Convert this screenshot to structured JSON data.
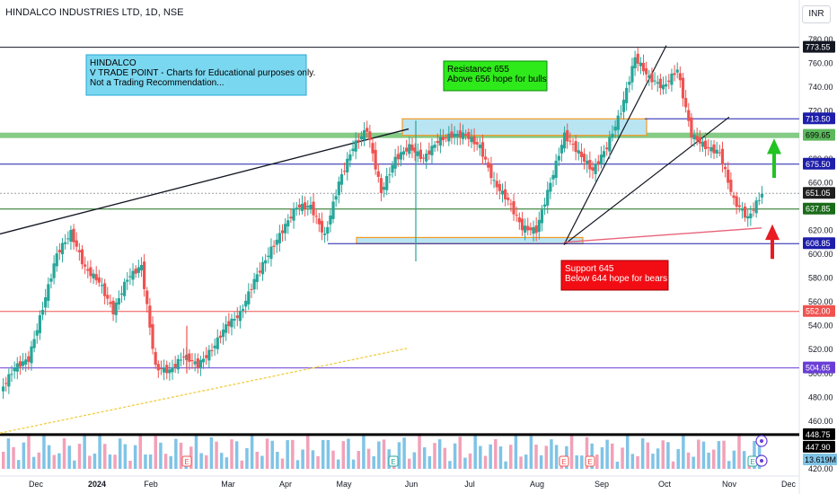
{
  "header": {
    "symbol_line": "HINDALCO INDUSTRIES LTD, 1D, NSE",
    "currency_button": "INR"
  },
  "colors": {
    "up": "#26a69a",
    "down": "#ef5350",
    "axis_text": "#131722",
    "note_cyan": "#7ad7f0",
    "note_green": "#2eea1a",
    "note_red": "#f20d14",
    "box_fill": "#b9e4f2",
    "box_border": "#f59a23",
    "green_band": "#5cb85c",
    "navy": "#1e1eab",
    "purple": "#6a3ed6",
    "pink_line": "#e8637b",
    "orange_trend": "#f2d04a"
  },
  "chart_data": {
    "type": "candlestick",
    "instrument": "HINDALCO INDUSTRIES LTD",
    "interval": "1D",
    "exchange": "NSE",
    "currency": "INR",
    "ylim": [
      420,
      780
    ],
    "y_ticks": [
      420,
      440,
      460,
      480,
      500,
      520,
      540,
      560,
      580,
      600,
      620,
      640,
      660,
      680,
      700,
      720,
      740,
      760,
      780
    ],
    "x_ticks": [
      "Dec",
      "2024",
      "Feb",
      "Mar",
      "Apr",
      "May",
      "Jun",
      "Jul",
      "Aug",
      "Sep",
      "Oct",
      "Nov",
      "Dec"
    ],
    "price_points": [
      {
        "label": "Nov 30",
        "close": 485
      },
      {
        "label": "Dec 08",
        "close": 505
      },
      {
        "label": "Dec 15",
        "close": 512
      },
      {
        "label": "Dec 22",
        "close": 555
      },
      {
        "label": "Dec 29",
        "close": 600
      },
      {
        "label": "Jan 05",
        "close": 618
      },
      {
        "label": "Jan 12",
        "close": 588
      },
      {
        "label": "Jan 19",
        "close": 577
      },
      {
        "label": "Jan 26",
        "close": 552
      },
      {
        "label": "Feb 02",
        "close": 580
      },
      {
        "label": "Feb 09",
        "close": 590
      },
      {
        "label": "Feb 16",
        "close": 505
      },
      {
        "label": "Feb 23",
        "close": 502
      },
      {
        "label": "Mar 01",
        "close": 515
      },
      {
        "label": "Mar 08",
        "close": 507
      },
      {
        "label": "Mar 15",
        "close": 520
      },
      {
        "label": "Mar 22",
        "close": 540
      },
      {
        "label": "Mar 29",
        "close": 550
      },
      {
        "label": "Apr 05",
        "close": 578
      },
      {
        "label": "Apr 12",
        "close": 600
      },
      {
        "label": "Apr 19",
        "close": 620
      },
      {
        "label": "Apr 26",
        "close": 640
      },
      {
        "label": "May 03",
        "close": 640
      },
      {
        "label": "May 10",
        "close": 615
      },
      {
        "label": "May 17",
        "close": 660
      },
      {
        "label": "May 24",
        "close": 690
      },
      {
        "label": "May 31",
        "close": 705
      },
      {
        "label": "Jun 04",
        "close": 652
      },
      {
        "label": "Jun 07",
        "close": 680
      },
      {
        "label": "Jun 14",
        "close": 690
      },
      {
        "label": "Jun 21",
        "close": 680
      },
      {
        "label": "Jun 28",
        "close": 695
      },
      {
        "label": "Jul 05",
        "close": 700
      },
      {
        "label": "Jul 12",
        "close": 700
      },
      {
        "label": "Jul 19",
        "close": 690
      },
      {
        "label": "Jul 26",
        "close": 660
      },
      {
        "label": "Aug 02",
        "close": 645
      },
      {
        "label": "Aug 09",
        "close": 622
      },
      {
        "label": "Aug 16",
        "close": 620
      },
      {
        "label": "Aug 23",
        "close": 660
      },
      {
        "label": "Aug 30",
        "close": 700
      },
      {
        "label": "Sep 06",
        "close": 685
      },
      {
        "label": "Sep 13",
        "close": 670
      },
      {
        "label": "Sep 20",
        "close": 690
      },
      {
        "label": "Sep 27",
        "close": 720
      },
      {
        "label": "Oct 01",
        "close": 765
      },
      {
        "label": "Oct 04",
        "close": 748
      },
      {
        "label": "Oct 11",
        "close": 740
      },
      {
        "label": "Oct 18",
        "close": 755
      },
      {
        "label": "Oct 25",
        "close": 700
      },
      {
        "label": "Oct 31",
        "close": 690
      },
      {
        "label": "Nov 05",
        "close": 685
      },
      {
        "label": "Nov 08",
        "close": 645
      },
      {
        "label": "Nov 13",
        "close": 630
      },
      {
        "label": "Nov 14",
        "close": 651
      }
    ],
    "horizontal_levels": [
      {
        "price": 773.55,
        "label": "773.55"
      },
      {
        "price": 713.5,
        "label": "713.50"
      },
      {
        "price": 699.65,
        "label": "699.65"
      },
      {
        "price": 675.5,
        "label": "675.50"
      },
      {
        "price": 651.05,
        "label": "651.05"
      },
      {
        "price": 637.85,
        "label": "637.85"
      },
      {
        "price": 608.85,
        "label": "608.85"
      },
      {
        "price": 552.0,
        "label": "552.00"
      },
      {
        "price": 504.65,
        "label": "504.65"
      },
      {
        "price": 448.75,
        "label": "448.75"
      },
      {
        "price": 447.9,
        "label": "447.90"
      }
    ],
    "volume_label": "13.619M",
    "annotations": [
      {
        "id": "note-info",
        "lines": [
          "HINDALCO",
          "V TRADE POINT - Charts for Educational purposes only.",
          "Not a Trading Recommendation..."
        ]
      },
      {
        "id": "note-resistance",
        "lines": [
          "Resistance 655",
          "Above 656 hope for bulls"
        ]
      },
      {
        "id": "note-support",
        "lines": [
          "Support 645",
          "Below 644 hope for bears"
        ]
      }
    ],
    "grid": false,
    "legend": "none"
  }
}
